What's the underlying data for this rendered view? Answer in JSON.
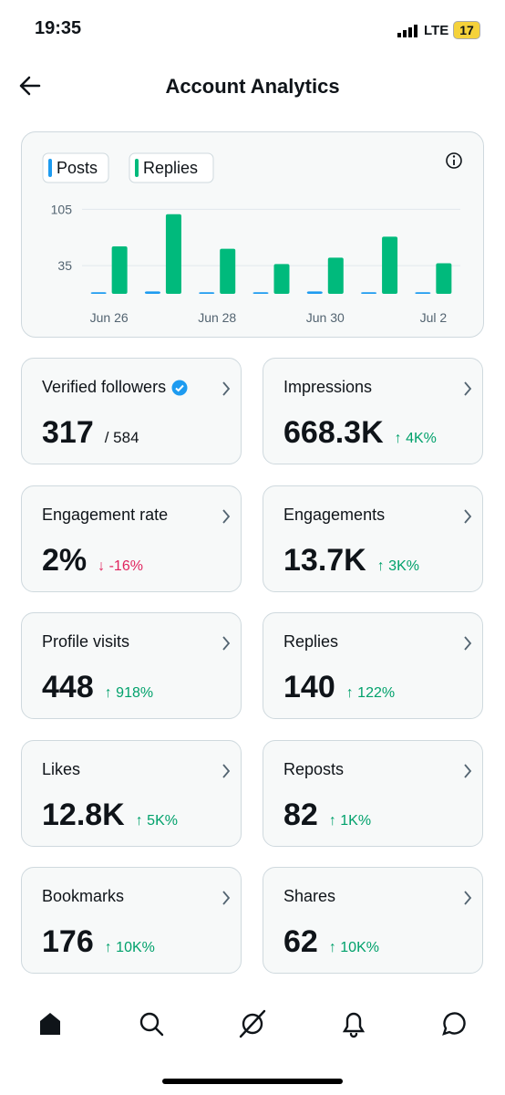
{
  "status_bar": {
    "time": "19:35",
    "network": "LTE",
    "battery": "17"
  },
  "header": {
    "title": "Account Analytics"
  },
  "chart_data": {
    "type": "bar",
    "categories": [
      "Jun 26",
      null,
      "Jun 28",
      null,
      "Jun 30",
      null,
      "Jul 2"
    ],
    "series": [
      {
        "name": "Posts",
        "color": "#1d9bf0",
        "values": [
          2,
          3,
          2,
          2,
          3,
          2,
          2
        ]
      },
      {
        "name": "Replies",
        "color": "#00ba7c",
        "values": [
          59,
          99,
          56,
          37,
          45,
          71,
          38
        ]
      }
    ],
    "ylim": [
      0,
      110
    ],
    "yticks": [
      35,
      105
    ],
    "grid": true
  },
  "cards": [
    {
      "title": "Verified followers",
      "value": "317",
      "sub": "/ 584"
    },
    {
      "title": "Impressions",
      "value": "668.3K",
      "change": "↑ 4K%",
      "color": "#00a16b"
    },
    {
      "title": "Engagement rate",
      "value": "2%",
      "change": "↓ -16%",
      "color": "#e0245e"
    },
    {
      "title": "Engagements",
      "value": "13.7K",
      "change": "↑ 3K%",
      "color": "#00a16b"
    },
    {
      "title": "Profile visits",
      "value": "448",
      "change": "↑ 918%",
      "color": "#00a16b"
    },
    {
      "title": "Replies",
      "value": "140",
      "change": "↑ 122%",
      "color": "#00a16b"
    },
    {
      "title": "Likes",
      "value": "12.8K",
      "change": "↑ 5K%",
      "color": "#00a16b"
    },
    {
      "title": "Reposts",
      "value": "82",
      "change": "↑ 1K%",
      "color": "#00a16b"
    },
    {
      "title": "Bookmarks",
      "value": "176",
      "change": "↑ 10K%",
      "color": "#00a16b"
    },
    {
      "title": "Shares",
      "value": "62",
      "change": "↑ 10K%",
      "color": "#00a16b"
    }
  ]
}
